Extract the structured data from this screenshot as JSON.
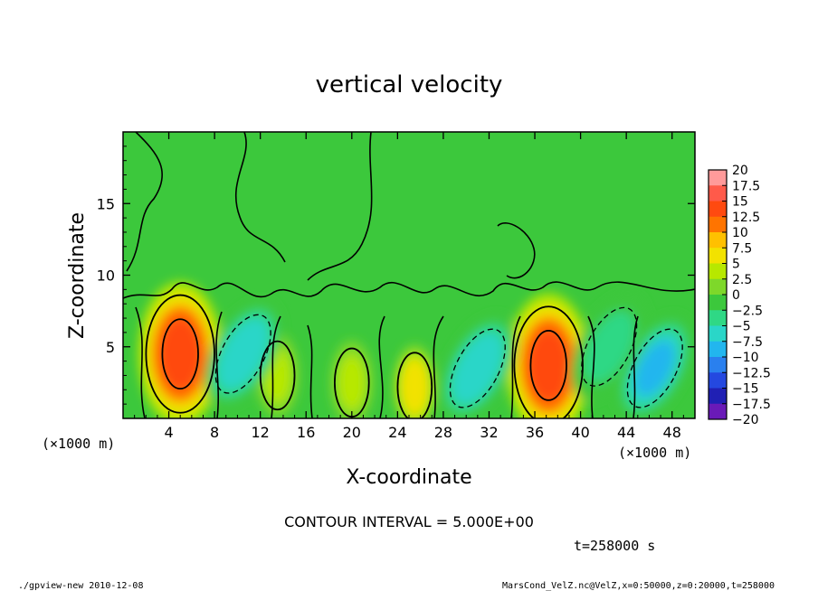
{
  "chart_data": {
    "type": "heatmap",
    "title": "vertical velocity",
    "xlabel": "X-coordinate",
    "ylabel": "Z-coordinate",
    "x_unit": "(×1000 m)",
    "x_unit_right": "(×1000 m)",
    "xlim": [
      0,
      50
    ],
    "ylim": [
      0,
      20
    ],
    "x_ticks": [
      4,
      8,
      12,
      16,
      20,
      24,
      28,
      32,
      36,
      40,
      44,
      48
    ],
    "y_ticks": [
      5,
      10,
      15
    ],
    "contour_interval_text": "CONTOUR INTERVAL = 5.000E+00",
    "time_text": "t=258000 s",
    "footer_left": "./gpview-new  2010-12-08",
    "footer_right": "MarsCond_VelZ.nc@VelZ,x=0:50000,z=0:20000,t=258000",
    "colorbar": {
      "levels": [
        -20,
        -17.5,
        -15,
        -12.5,
        -10,
        -7.5,
        -5,
        -2.5,
        0,
        2.5,
        5,
        7.5,
        10,
        12.5,
        15,
        17.5,
        20
      ],
      "labels": [
        "20",
        "17.5",
        "15",
        "12.5",
        "10",
        "7.5",
        "5",
        "2.5",
        "0",
        "−2.5",
        "−5",
        "−7.5",
        "−10",
        "−12.5",
        "−15",
        "−17.5",
        "−20"
      ],
      "colors": [
        "#ff9a9a",
        "#ff5a4a",
        "#ff4a10",
        "#ff7400",
        "#ffc000",
        "#f2e200",
        "#b7e800",
        "#7ed82a",
        "#3cc83c",
        "#2fd885",
        "#2ad6c8",
        "#22b6ee",
        "#2a80ee",
        "#2448e0",
        "#2020b4",
        "#6a1ab8"
      ]
    },
    "features": [
      {
        "type": "updraft",
        "x": 5,
        "z": 4.5,
        "peak": 15
      },
      {
        "type": "updraft",
        "x": 37.2,
        "z": 3.7,
        "peak": 15
      },
      {
        "type": "updraft",
        "x": 25.5,
        "z": 2.2,
        "peak": 7.5
      },
      {
        "type": "updraft",
        "x": 13.5,
        "z": 3.0,
        "peak": 5
      },
      {
        "type": "updraft",
        "x": 20,
        "z": 2.5,
        "peak": 5
      },
      {
        "type": "downdraft",
        "x": 10.5,
        "z": 4.5,
        "peak": -7.5
      },
      {
        "type": "downdraft",
        "x": 31,
        "z": 3.5,
        "peak": -7.5
      },
      {
        "type": "downdraft",
        "x": 46.5,
        "z": 3.5,
        "peak": -10
      },
      {
        "type": "downdraft",
        "x": 42.5,
        "z": 5,
        "peak": -5
      }
    ]
  }
}
